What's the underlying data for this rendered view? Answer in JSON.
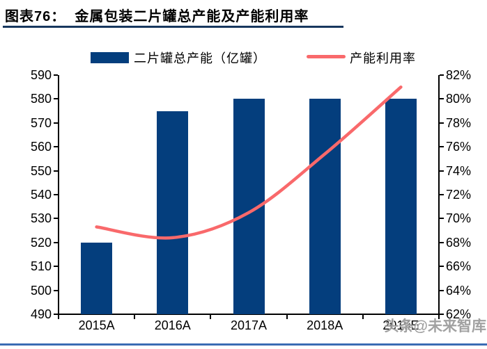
{
  "figure": {
    "title": "图表76：  金属包装二片罐总产能及产能利用率",
    "watermark": "头条@未来智库"
  },
  "legend": {
    "bar_label": "二片罐总产能（亿罐）",
    "line_label": "产能利用率"
  },
  "colors": {
    "bar": "#043e7d",
    "line": "#f9696b",
    "title_rule": "#17375e",
    "bottom_rule": "#3b6cb4",
    "axis": "#000000",
    "watermark": "#9a9a9a"
  },
  "chart_data": {
    "type": "bar",
    "subtype": "combo-bar-line",
    "title": "金属包装二片罐总产能及产能利用率",
    "categories": [
      "2015A",
      "2016A",
      "2017A",
      "2018A",
      "2019E"
    ],
    "series": [
      {
        "name": "二片罐总产能（亿罐）",
        "type": "bar",
        "axis": "left",
        "color": "#043e7d",
        "values": [
          520,
          575,
          580,
          580,
          580
        ]
      },
      {
        "name": "产能利用率",
        "type": "line",
        "axis": "right",
        "color": "#f9696b",
        "values": [
          69.3,
          68.4,
          70.5,
          75.4,
          81.0
        ]
      }
    ],
    "left_axis": {
      "min": 490,
      "max": 590,
      "step": 10,
      "suffix": ""
    },
    "right_axis": {
      "min": 62,
      "max": 82,
      "step": 2,
      "suffix": "%"
    },
    "grid": false,
    "legend_position": "top",
    "smooth_line": true
  }
}
